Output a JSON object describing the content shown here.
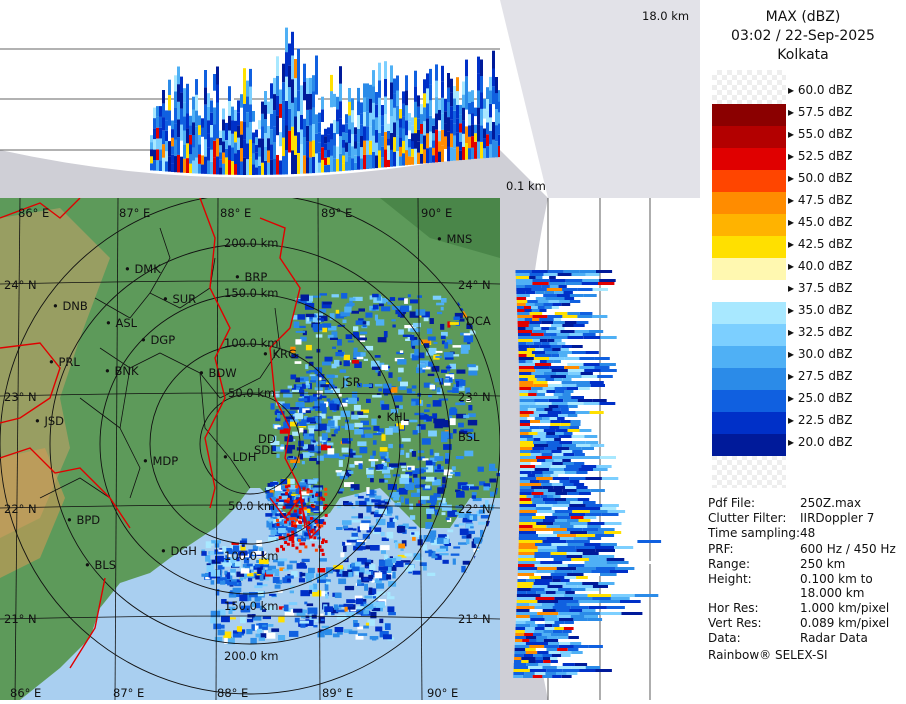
{
  "legend": {
    "title": "MAX (dBZ)",
    "datetime": "03:02 / 22-Sep-2025",
    "station": "Kolkata",
    "scale": [
      {
        "label": "60.0 dBZ",
        "color": "#ffffff"
      },
      {
        "label": "57.5 dBZ",
        "color": "#8b0000"
      },
      {
        "label": "55.0 dBZ",
        "color": "#b30000"
      },
      {
        "label": "52.5 dBZ",
        "color": "#e00000"
      },
      {
        "label": "50.0 dBZ",
        "color": "#ff4500"
      },
      {
        "label": "47.5 dBZ",
        "color": "#ff8c00"
      },
      {
        "label": "45.0 dBZ",
        "color": "#ffb300"
      },
      {
        "label": "42.5 dBZ",
        "color": "#ffe000"
      },
      {
        "label": "40.0 dBZ",
        "color": "#fff8b0"
      },
      {
        "label": "37.5 dBZ",
        "color": "#ffffff"
      },
      {
        "label": "35.0 dBZ",
        "color": "#a8e8ff"
      },
      {
        "label": "32.5 dBZ",
        "color": "#7ccfff"
      },
      {
        "label": "30.0 dBZ",
        "color": "#4fb0f5"
      },
      {
        "label": "27.5 dBZ",
        "color": "#2b8be8"
      },
      {
        "label": "25.0 dBZ",
        "color": "#1060e0"
      },
      {
        "label": "22.5 dBZ",
        "color": "#0030c8"
      },
      {
        "label": "20.0 dBZ",
        "color": "#001a9a"
      }
    ]
  },
  "info": [
    {
      "key": "Pdf File:",
      "value": "250Z.max"
    },
    {
      "key": "Clutter Filter:",
      "value": "IIRDoppler 7"
    },
    {
      "key": "Time sampling:",
      "value": "48"
    },
    {
      "key": "PRF:",
      "value": "600 Hz / 450 Hz"
    },
    {
      "key": "Range:",
      "value": "250 km"
    },
    {
      "key": "Height:",
      "value": "0.100 km to"
    },
    {
      "key": "",
      "value": "18.000 km"
    },
    {
      "key": "Hor Res:",
      "value": "1.000 km/pixel"
    },
    {
      "key": "Vert Res:",
      "value": "0.089 km/pixel"
    },
    {
      "key": "Data:",
      "value": "Radar Data"
    }
  ],
  "footer": "Rainbow® SELEX-SI",
  "heights": {
    "top": "18.0 km",
    "bottom": "0.1 km"
  },
  "map": {
    "lon_labels": [
      "86° E",
      "87° E",
      "88° E",
      "89° E",
      "90° E"
    ],
    "lat_labels": [
      "24° N",
      "23° N",
      "22° N",
      "21° N"
    ],
    "range_labels": [
      "200.0 km",
      "150.0 km",
      "100.0 km",
      "50.0 km",
      "50.0 km",
      "100.0 km",
      "150.0 km",
      "200.0 km"
    ],
    "stations": [
      "MNS",
      "DMK",
      "BRP",
      "DNB",
      "SUR",
      "ASL",
      "DGP",
      "KRG",
      "DCA",
      "PRL",
      "BNK",
      "BDW",
      "JSR",
      "KHL",
      "BSL",
      "JSD",
      "DD",
      "MDP",
      "LDH",
      "SDL",
      "BPD",
      "DGH",
      "BLS"
    ]
  },
  "colors": {
    "land": "#5d9a5a",
    "sea": "#a9cff0",
    "border": "#e00000",
    "district": "#111111"
  }
}
